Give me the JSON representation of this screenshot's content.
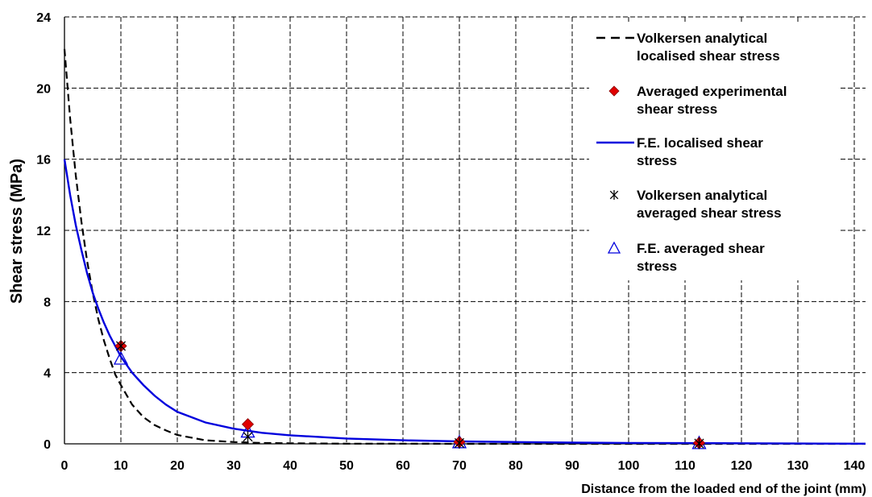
{
  "chart_data": {
    "type": "line",
    "xlabel": "Distance from the loaded end of the joint (mm)",
    "ylabel": "Shear stress (MPa)",
    "xlim": [
      0,
      142
    ],
    "ylim": [
      0,
      24
    ],
    "x_ticks": [
      0,
      10,
      20,
      30,
      40,
      50,
      60,
      70,
      80,
      90,
      100,
      110,
      120,
      130,
      140
    ],
    "y_ticks": [
      0,
      4,
      8,
      12,
      16,
      20,
      24
    ],
    "grid": true,
    "legend_position": "top-right",
    "series": [
      {
        "name": "Volkersen analytical localised shear stress",
        "kind": "line",
        "style": "dashed",
        "color": "#000000",
        "x": [
          0,
          1,
          2,
          3,
          4,
          5,
          6,
          7,
          8,
          9,
          10,
          12,
          14,
          16,
          18,
          20,
          25,
          30,
          35,
          40,
          50,
          60,
          70,
          80,
          100,
          142
        ],
        "y": [
          22.2,
          18.3,
          15.1,
          12.5,
          10.3,
          8.5,
          7.0,
          5.8,
          4.8,
          3.9,
          3.3,
          2.2,
          1.5,
          1.05,
          0.75,
          0.5,
          0.2,
          0.1,
          0.05,
          0.03,
          0.01,
          0.01,
          0,
          0,
          0,
          0
        ]
      },
      {
        "name": "Averaged experimental shear stress",
        "kind": "marker",
        "marker": "diamond",
        "color": "#e00000",
        "x": [
          10,
          32.5,
          70,
          112.5
        ],
        "y": [
          5.5,
          1.1,
          0.1,
          0.05
        ]
      },
      {
        "name": "F.E. localised shear stress",
        "kind": "line",
        "style": "solid",
        "color": "#0000dd",
        "x": [
          0,
          1,
          2,
          3,
          4,
          5,
          6,
          7,
          8,
          9,
          10,
          12,
          14,
          16,
          18,
          20,
          25,
          30,
          35,
          40,
          50,
          60,
          70,
          80,
          90,
          100,
          110,
          120,
          130,
          142
        ],
        "y": [
          16.0,
          14.0,
          12.3,
          10.9,
          9.6,
          8.5,
          7.6,
          6.8,
          6.1,
          5.5,
          4.9,
          4.0,
          3.3,
          2.7,
          2.2,
          1.8,
          1.2,
          0.85,
          0.62,
          0.48,
          0.3,
          0.2,
          0.14,
          0.1,
          0.07,
          0.05,
          0.04,
          0.03,
          0.02,
          0.01
        ]
      },
      {
        "name": "Volkersen analytical averaged shear stress",
        "kind": "marker",
        "marker": "asterisk",
        "color": "#000000",
        "x": [
          10,
          32.5,
          70,
          112.5
        ],
        "y": [
          5.5,
          0.4,
          0.05,
          0.02
        ]
      },
      {
        "name": "F.E. averaged shear stress",
        "kind": "marker",
        "marker": "triangle",
        "color": "#0000dd",
        "x": [
          10,
          32.5,
          70,
          112.5
        ],
        "y": [
          4.8,
          0.7,
          0.1,
          0.05
        ]
      }
    ],
    "legend": [
      {
        "line1": "Volkersen analytical",
        "line2": "localised shear stress",
        "symbol": "dash-line",
        "color": "#000000"
      },
      {
        "line1": "Averaged experimental",
        "line2": "shear stress",
        "symbol": "diamond",
        "color": "#e00000"
      },
      {
        "line1": "F.E. localised shear",
        "line2": "stress",
        "symbol": "solid-line",
        "color": "#0000dd"
      },
      {
        "line1": "Volkersen analytical",
        "line2": "averaged shear stress",
        "symbol": "asterisk",
        "color": "#000000"
      },
      {
        "line1": "F.E. averaged shear",
        "line2": "stress",
        "symbol": "triangle",
        "color": "#0000dd"
      }
    ]
  }
}
